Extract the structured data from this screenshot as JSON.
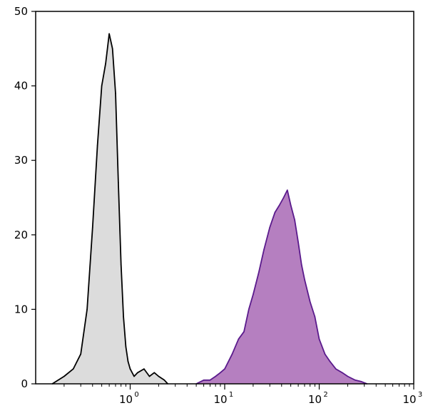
{
  "chart_data": {
    "type": "area",
    "title": "",
    "xlabel": "",
    "ylabel": "",
    "x_scale": "log",
    "xlim": [
      0.1,
      1000
    ],
    "ylim": [
      0,
      50
    ],
    "grid": false,
    "x_ticks": [
      {
        "value": 1,
        "base": "10",
        "exp": "0"
      },
      {
        "value": 10,
        "base": "10",
        "exp": "1"
      },
      {
        "value": 100,
        "base": "10",
        "exp": "2"
      },
      {
        "value": 1000,
        "base": "10",
        "exp": "3"
      }
    ],
    "y_ticks": [
      {
        "value": 0,
        "label": "0"
      },
      {
        "value": 10,
        "label": "10"
      },
      {
        "value": 20,
        "label": "20"
      },
      {
        "value": 30,
        "label": "30"
      },
      {
        "value": 40,
        "label": "40"
      },
      {
        "value": 50,
        "label": "50"
      }
    ],
    "series": [
      {
        "color_line": "#000000",
        "color_fill": "#dcdcdc",
        "x": [
          0.15,
          0.2,
          0.25,
          0.3,
          0.35,
          0.4,
          0.45,
          0.5,
          0.55,
          0.6,
          0.65,
          0.7,
          0.75,
          0.8,
          0.85,
          0.9,
          0.95,
          1.0,
          1.1,
          1.2,
          1.4,
          1.6,
          1.8,
          2.0,
          2.3,
          2.5
        ],
        "y": [
          0,
          1,
          2,
          4,
          10,
          21,
          32,
          40,
          43,
          47,
          45,
          39,
          27,
          16,
          9,
          5,
          3,
          2,
          1,
          1.5,
          2,
          1,
          1.5,
          1,
          0.5,
          0
        ]
      },
      {
        "color_line": "#5a1a8c",
        "color_fill": "#b57fc0",
        "x": [
          5,
          6,
          7,
          8,
          9,
          10,
          12,
          14,
          16,
          18,
          20,
          23,
          26,
          30,
          34,
          38,
          42,
          46,
          50,
          55,
          60,
          65,
          70,
          80,
          90,
          100,
          115,
          130,
          150,
          175,
          200,
          240,
          280,
          320
        ],
        "y": [
          0,
          0.5,
          0.5,
          1,
          1.5,
          2,
          4,
          6,
          7,
          10,
          12,
          15,
          18,
          21,
          23,
          24,
          25,
          26,
          24,
          22,
          19,
          16,
          14,
          11,
          9,
          6,
          4,
          3,
          2,
          1.5,
          1,
          0.5,
          0.3,
          0
        ]
      }
    ]
  }
}
